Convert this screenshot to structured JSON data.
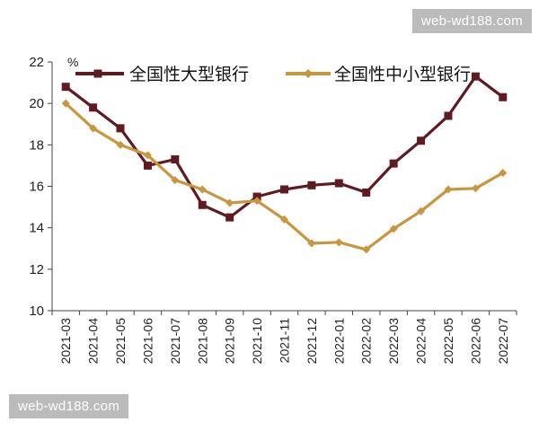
{
  "watermark": {
    "top": "web-wd188.com",
    "bottom": "web-wd188.com"
  },
  "chart_data": {
    "type": "line",
    "unit": "%",
    "categories": [
      "2021-03",
      "2021-04",
      "2021-05",
      "2021-06",
      "2021-07",
      "2021-08",
      "2021-09",
      "2021-10",
      "2021-11",
      "2021-12",
      "2022-01",
      "2022-02",
      "2022-03",
      "2022-04",
      "2022-05",
      "2022-06",
      "2022-07"
    ],
    "series": [
      {
        "name": "全国性大型银行",
        "color": "#5e1c22",
        "marker": "square",
        "values": [
          20.8,
          19.8,
          18.8,
          17.0,
          17.3,
          15.1,
          14.5,
          15.5,
          15.85,
          16.05,
          16.15,
          15.7,
          17.1,
          18.2,
          19.4,
          21.3,
          20.3
        ]
      },
      {
        "name": "全国性中小型银行",
        "color": "#c8963e",
        "marker": "diamond",
        "values": [
          20.0,
          18.8,
          18.0,
          17.5,
          16.3,
          15.85,
          15.2,
          15.3,
          14.4,
          13.25,
          13.3,
          12.95,
          13.95,
          14.8,
          15.85,
          15.9,
          16.65
        ]
      }
    ],
    "ylim": [
      10,
      22
    ],
    "yticks": [
      10,
      12,
      14,
      16,
      18,
      20,
      22
    ],
    "grid": false,
    "legend": "top"
  }
}
